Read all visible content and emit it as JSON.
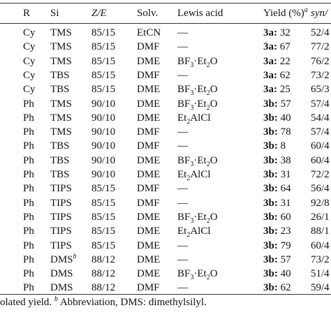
{
  "header": {
    "entry": "ry",
    "r": "R",
    "si": "Si",
    "ze": "Z/E",
    "solv": "Solv.",
    "lewis": "Lewis acid",
    "yield": "Yield (%)",
    "yield_sup": "a",
    "synanti": "syn/"
  },
  "rows": [
    {
      "r": "Cy",
      "si": "TMS",
      "si_sup": "",
      "ze": "85/15",
      "solv": "EtCN",
      "lewis": "—",
      "prod": "3a",
      "yield": "32",
      "synanti": "52/4"
    },
    {
      "r": "Cy",
      "si": "TMS",
      "si_sup": "",
      "ze": "85/15",
      "solv": "DMF",
      "lewis": "—",
      "prod": "3a",
      "yield": "67",
      "synanti": "77/2"
    },
    {
      "r": "Cy",
      "si": "TMS",
      "si_sup": "",
      "ze": "85/15",
      "solv": "DME",
      "lewis": "BF3·Et2O",
      "prod": "3a",
      "yield": "22",
      "synanti": "76/2"
    },
    {
      "r": "Cy",
      "si": "TBS",
      "si_sup": "",
      "ze": "85/15",
      "solv": "DMF",
      "lewis": "—",
      "prod": "3a",
      "yield": "62",
      "synanti": "73/2"
    },
    {
      "r": "Cy",
      "si": "TBS",
      "si_sup": "",
      "ze": "85/15",
      "solv": "DME",
      "lewis": "BF3·Et2O",
      "prod": "3a",
      "yield": "25",
      "synanti": "65/3"
    },
    {
      "r": "Ph",
      "si": "TMS",
      "si_sup": "",
      "ze": "90/10",
      "solv": "DME",
      "lewis": "BF3·Et2O",
      "prod": "3b",
      "yield": "57",
      "synanti": "57/4"
    },
    {
      "r": "Ph",
      "si": "TMS",
      "si_sup": "",
      "ze": "90/10",
      "solv": "DME",
      "lewis": "Et2AlCl",
      "prod": "3b",
      "yield": "40",
      "synanti": "54/4"
    },
    {
      "r": "Ph",
      "si": "TMS",
      "si_sup": "",
      "ze": "90/10",
      "solv": "DMF",
      "lewis": "—",
      "prod": "3b",
      "yield": "78",
      "synanti": "57/4"
    },
    {
      "r": "Ph",
      "si": "TBS",
      "si_sup": "",
      "ze": "90/10",
      "solv": "DMF",
      "lewis": "—",
      "prod": "3b",
      "yield": "8",
      "synanti": "60/4"
    },
    {
      "r": "Ph",
      "si": "TBS",
      "si_sup": "",
      "ze": "90/10",
      "solv": "DME",
      "lewis": "BF3·Et2O",
      "prod": "3b",
      "yield": "38",
      "synanti": "60/4"
    },
    {
      "r": "Ph",
      "si": "TBS",
      "si_sup": "",
      "ze": "90/10",
      "solv": "DME",
      "lewis": "Et2AlCl",
      "prod": "3b",
      "yield": "31",
      "synanti": "72/2"
    },
    {
      "r": "Ph",
      "si": "TIPS",
      "si_sup": "",
      "ze": "85/15",
      "solv": "DMF",
      "lewis": "—",
      "prod": "3b",
      "yield": "64",
      "synanti": "56/4"
    },
    {
      "r": "Ph",
      "si": "TIPS",
      "si_sup": "",
      "ze": "85/15",
      "solv": "DMF",
      "lewis": "—",
      "prod": "3b",
      "yield": "31",
      "synanti": "92/8"
    },
    {
      "r": "Ph",
      "si": "TIPS",
      "si_sup": "",
      "ze": "85/15",
      "solv": "DME",
      "lewis": "BF3·Et2O",
      "prod": "3b",
      "yield": "60",
      "synanti": "26/1"
    },
    {
      "r": "Ph",
      "si": "TIPS",
      "si_sup": "",
      "ze": "85/15",
      "solv": "DME",
      "lewis": "Et2AlCl",
      "prod": "3b",
      "yield": "23",
      "synanti": "88/1"
    },
    {
      "r": "Ph",
      "si": "TIPS",
      "si_sup": "",
      "ze": "85/15",
      "solv": "DME",
      "lewis": "—",
      "prod": "3b",
      "yield": "79",
      "synanti": "60/4"
    },
    {
      "r": "Ph",
      "si": "DMS",
      "si_sup": "b",
      "ze": "88/12",
      "solv": "DME",
      "lewis": "—",
      "prod": "3b",
      "yield": "57",
      "synanti": "73/2"
    },
    {
      "r": "Ph",
      "si": "DMS",
      "si_sup": "",
      "ze": "88/12",
      "solv": "DME",
      "lewis": "BF3·Et2O",
      "prod": "3b",
      "yield": "40",
      "synanti": "51/4"
    },
    {
      "r": "Ph",
      "si": "DMS",
      "si_sup": "",
      "ze": "88/12",
      "solv": "DMF",
      "lewis": "—",
      "prod": "3b",
      "yield": "62",
      "synanti": "59/4"
    }
  ],
  "footnote": {
    "a_text": "olated yield.",
    "b_mark": "b",
    "b_text": "Abbreviation, DMS: dimethylsilyl."
  }
}
